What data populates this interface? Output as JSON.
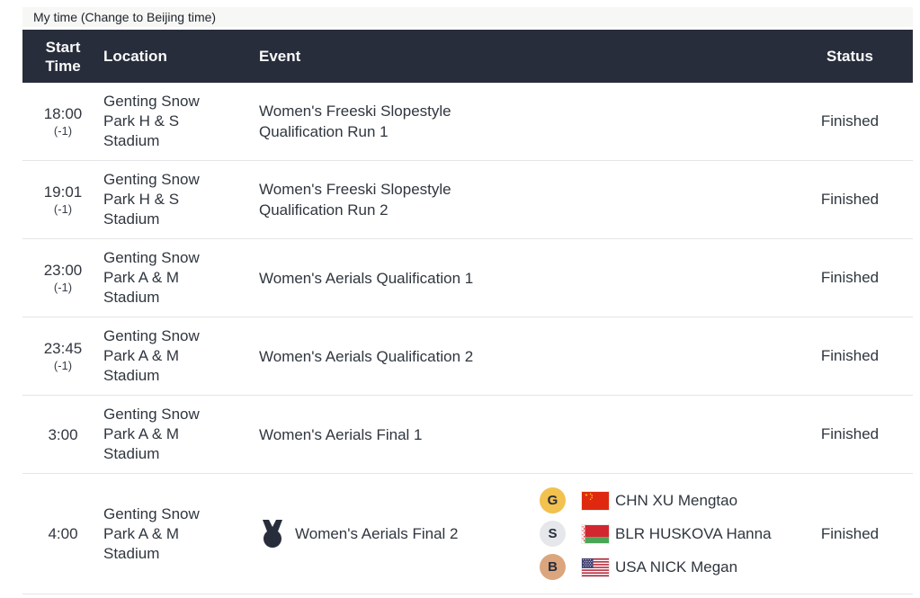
{
  "timebar": {
    "label": "My time (Change to Beijing time)"
  },
  "table": {
    "headers": {
      "start_time": "Start Time",
      "location": "Location",
      "event": "Event",
      "status": "Status"
    },
    "rows": [
      {
        "time": "18:00",
        "offset": "(-1)",
        "location": "Genting Snow Park H & S Stadium",
        "event": "Women's Freeski Slopestyle Qualification Run 1",
        "status": "Finished",
        "medal_event": false,
        "medals": []
      },
      {
        "time": "19:01",
        "offset": "(-1)",
        "location": "Genting Snow Park H & S Stadium",
        "event": "Women's Freeski Slopestyle Qualification Run 2",
        "status": "Finished",
        "medal_event": false,
        "medals": []
      },
      {
        "time": "23:00",
        "offset": "(-1)",
        "location": "Genting Snow Park A & M Stadium",
        "event": "Women's Aerials Qualification 1",
        "status": "Finished",
        "medal_event": false,
        "medals": []
      },
      {
        "time": "23:45",
        "offset": "(-1)",
        "location": "Genting Snow Park A & M Stadium",
        "event": "Women's Aerials Qualification 2",
        "status": "Finished",
        "medal_event": false,
        "medals": []
      },
      {
        "time": "3:00",
        "offset": "",
        "location": "Genting Snow Park A & M Stadium",
        "event": "Women's Aerials Final 1",
        "status": "Finished",
        "medal_event": false,
        "medals": []
      },
      {
        "time": "4:00",
        "offset": "",
        "location": "Genting Snow Park A & M Stadium",
        "event": "Women's Aerials Final 2",
        "status": "Finished",
        "medal_event": true,
        "medals": [
          {
            "medal": "G",
            "flag": "china",
            "name": "CHN XU Mengtao"
          },
          {
            "medal": "S",
            "flag": "belarus",
            "name": "BLR HUSKOVA Hanna"
          },
          {
            "medal": "B",
            "flag": "usa",
            "name": "USA NICK Megan"
          }
        ]
      }
    ]
  },
  "colors": {
    "header_bg": "#272d3b",
    "gold": "#f2c14e",
    "silver": "#e5e7ea",
    "bronze": "#dba67d",
    "separator": "#e5e5e7",
    "timebar_bg": "#f7f7f5"
  }
}
